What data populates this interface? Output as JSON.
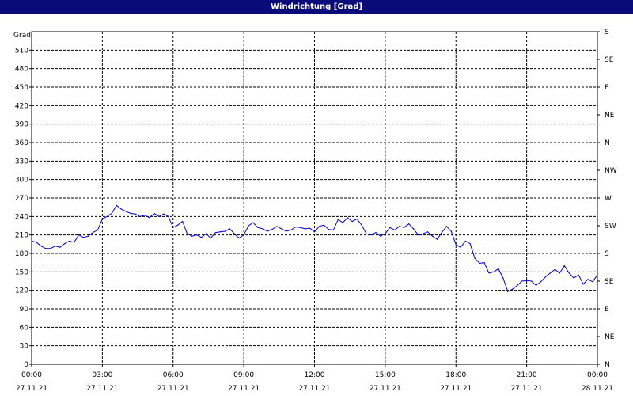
{
  "window": {
    "title": "Windrichtung [Grad]"
  },
  "chart_data": {
    "type": "line",
    "title": "Windrichtung [Grad]",
    "ylabel": "Grad",
    "xlabel": "",
    "ylim": [
      0,
      540
    ],
    "y_ticks": [
      0,
      30,
      60,
      90,
      120,
      150,
      180,
      210,
      240,
      270,
      300,
      330,
      360,
      390,
      420,
      450,
      480,
      510
    ],
    "y_tick_labels": [
      "0",
      "30",
      "60",
      "90",
      "120",
      "150",
      "180",
      "210",
      "240",
      "270",
      "300",
      "330",
      "360",
      "390",
      "420",
      "450",
      "480",
      "510"
    ],
    "right_axis_ticks": [
      {
        "value": 0,
        "label": "N"
      },
      {
        "value": 45,
        "label": "NE"
      },
      {
        "value": 90,
        "label": "E"
      },
      {
        "value": 135,
        "label": "SE"
      },
      {
        "value": 180,
        "label": "S"
      },
      {
        "value": 225,
        "label": "SW"
      },
      {
        "value": 270,
        "label": "W"
      },
      {
        "value": 315,
        "label": "NW"
      },
      {
        "value": 360,
        "label": "N"
      },
      {
        "value": 405,
        "label": "NE"
      },
      {
        "value": 450,
        "label": "E"
      },
      {
        "value": 495,
        "label": "SE"
      },
      {
        "value": 540,
        "label": "S"
      }
    ],
    "x_unit": "hours",
    "xlim": [
      0,
      24
    ],
    "x_ticks": [
      {
        "value": 0,
        "time": "00:00",
        "date": "27.11.21"
      },
      {
        "value": 3,
        "time": "03:00",
        "date": "27.11.21"
      },
      {
        "value": 6,
        "time": "06:00",
        "date": "27.11.21"
      },
      {
        "value": 9,
        "time": "09:00",
        "date": "27.11.21"
      },
      {
        "value": 12,
        "time": "12:00",
        "date": "27.11.21"
      },
      {
        "value": 15,
        "time": "15:00",
        "date": "27.11.21"
      },
      {
        "value": 18,
        "time": "18:00",
        "date": "27.11.21"
      },
      {
        "value": 21,
        "time": "21:00",
        "date": "27.11.21"
      },
      {
        "value": 24,
        "time": "00:00",
        "date": "28.11.21"
      }
    ],
    "grid": true,
    "line_color": "#0000cc",
    "series": [
      {
        "x": [
          0.0,
          0.2,
          0.4,
          0.6,
          0.8,
          1.0,
          1.2,
          1.4,
          1.6,
          1.8,
          2.0,
          2.2,
          2.4,
          2.6,
          2.8,
          3.0,
          3.2,
          3.4,
          3.6,
          3.8,
          4.0,
          4.2,
          4.4,
          4.6,
          4.8,
          5.0,
          5.2,
          5.4,
          5.6,
          5.8,
          6.0,
          6.2,
          6.4,
          6.6,
          6.8,
          7.0,
          7.2,
          7.4,
          7.6,
          7.8,
          8.0,
          8.2,
          8.4,
          8.6,
          8.8,
          9.0,
          9.2,
          9.4,
          9.6,
          9.8,
          10.0,
          10.2,
          10.4,
          10.6,
          10.8,
          11.0,
          11.2,
          11.4,
          11.6,
          11.8,
          12.0,
          12.2,
          12.4,
          12.6,
          12.8,
          13.0,
          13.2,
          13.4,
          13.6,
          13.8,
          14.0,
          14.2,
          14.4,
          14.6,
          14.8,
          15.0,
          15.2,
          15.4,
          15.6,
          15.8,
          16.0,
          16.2,
          16.4,
          16.6,
          16.8,
          17.0,
          17.2,
          17.4,
          17.6,
          17.8,
          18.0,
          18.2,
          18.4,
          18.6,
          18.8,
          19.0,
          19.2,
          19.4,
          19.6,
          19.8,
          20.0,
          20.2,
          20.4,
          20.6,
          20.8,
          21.0,
          21.2,
          21.4,
          21.6,
          21.8,
          22.0,
          22.2,
          22.4,
          22.6,
          22.8,
          23.0,
          23.2,
          23.4,
          23.6,
          23.8,
          24.0
        ],
        "values": [
          200,
          198,
          192,
          188,
          188,
          192,
          190,
          196,
          200,
          198,
          210,
          206,
          208,
          214,
          218,
          236,
          240,
          245,
          258,
          252,
          248,
          245,
          244,
          240,
          242,
          238,
          245,
          240,
          244,
          240,
          222,
          226,
          232,
          212,
          208,
          210,
          206,
          212,
          205,
          214,
          215,
          216,
          220,
          212,
          205,
          210,
          225,
          230,
          222,
          220,
          216,
          219,
          224,
          220,
          216,
          218,
          223,
          222,
          220,
          221,
          215,
          224,
          226,
          219,
          218,
          235,
          230,
          238,
          232,
          236,
          226,
          212,
          210,
          214,
          208,
          212,
          222,
          218,
          224,
          222,
          228,
          220,
          210,
          212,
          215,
          208,
          203,
          214,
          224,
          216,
          194,
          190,
          200,
          196,
          172,
          164,
          165,
          148,
          150,
          155,
          140,
          118,
          122,
          128,
          135,
          136,
          135,
          128,
          134,
          142,
          148,
          154,
          148,
          160,
          148,
          140,
          145,
          130,
          138,
          134,
          145
        ]
      }
    ]
  }
}
